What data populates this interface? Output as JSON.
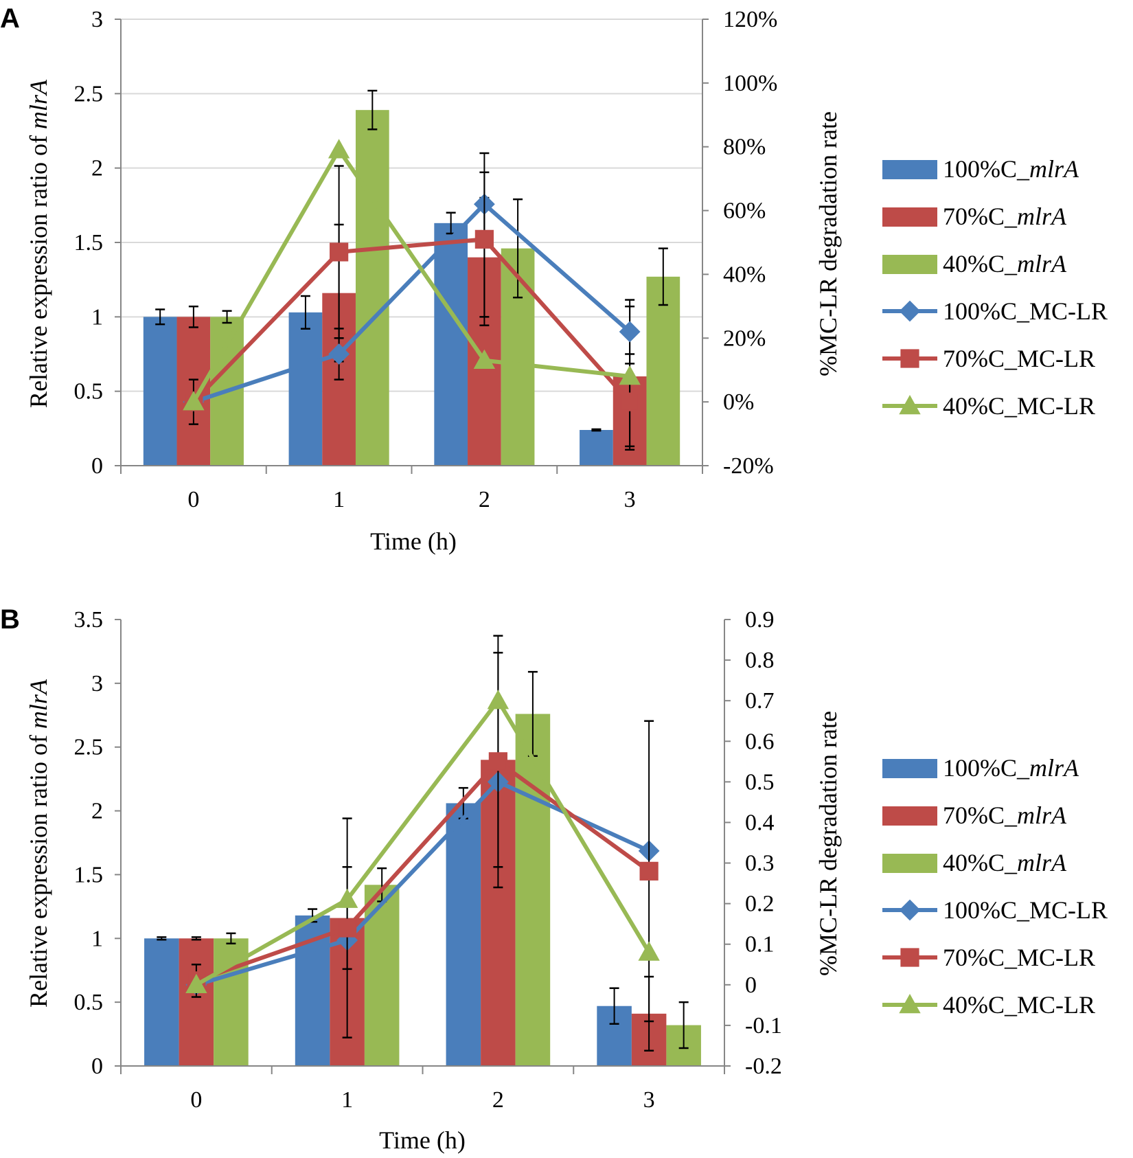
{
  "chart_data": [
    {
      "panel_label": "A",
      "type": "bar+line",
      "categories": [
        "0",
        "1",
        "2",
        "3"
      ],
      "xlabel": "Time (h)",
      "ylabel_prefix": "Relative expression ratio of ",
      "ylabel_italic": "mlrA",
      "y2label": "%MC-LR degradation  rate",
      "y_ticks": [
        "0",
        "0.5",
        "1",
        "1.5",
        "2",
        "2.5",
        "3"
      ],
      "ylim": [
        0,
        3
      ],
      "y2_ticks": [
        "-20%",
        "0%",
        "20%",
        "40%",
        "60%",
        "80%",
        "100%",
        "120%"
      ],
      "y2lim": [
        -20,
        120
      ],
      "gridlines": true,
      "legend_position": "right",
      "bar_series": [
        {
          "name_prefix": "100%C_",
          "name_italic": "mlrA",
          "color": "#4a7ebb",
          "values": [
            1.0,
            1.03,
            1.63,
            0.24
          ],
          "errors": [
            0.05,
            0.11,
            0.07,
            0.005
          ]
        },
        {
          "name_prefix": "70%C_",
          "name_italic": "mlrA",
          "color": "#be4b48",
          "values": [
            1.0,
            1.16,
            1.4,
            0.6
          ],
          "errors": [
            0.07,
            0.46,
            0.4,
            0.47
          ]
        },
        {
          "name_prefix": "40%C_",
          "name_italic": "mlrA",
          "color": "#98b954",
          "values": [
            1.0,
            2.39,
            1.46,
            1.27
          ],
          "errors": [
            0.04,
            0.13,
            0.33,
            0.19
          ]
        }
      ],
      "line_series": [
        {
          "name": "100%C_MC-LR",
          "color": "#4a7ebb",
          "marker": "diamond",
          "values": [
            0,
            15,
            62,
            22
          ],
          "errors": [
            0,
            8,
            10,
            10
          ]
        },
        {
          "name": "70%C_MC-LR",
          "color": "#be4b48",
          "marker": "square",
          "values": [
            0,
            47,
            51,
            0
          ],
          "errors": [
            7,
            27,
            27,
            15
          ]
        },
        {
          "name": "40%C_MC-LR",
          "color": "#98b954",
          "marker": "triangle",
          "values": [
            0,
            79,
            13,
            8
          ],
          "errors": [
            0,
            0,
            0,
            0
          ]
        }
      ]
    },
    {
      "panel_label": "B",
      "type": "bar+line",
      "categories": [
        "0",
        "1",
        "2",
        "3"
      ],
      "xlabel": "Time (h)",
      "ylabel_prefix": "Relative expression ratio of ",
      "ylabel_italic": "mlrA",
      "y2label": "%MC-LR degradation  rate",
      "y_ticks": [
        "0",
        "0.5",
        "1",
        "1.5",
        "2",
        "2.5",
        "3",
        "3.5"
      ],
      "ylim": [
        0,
        3.5
      ],
      "y2_ticks": [
        "-0.2",
        "-0.1",
        "0",
        "0.1",
        "0.2",
        "0.3",
        "0.4",
        "0.5",
        "0.6",
        "0.7",
        "0.8",
        "0.9"
      ],
      "y2lim": [
        -0.2,
        0.9
      ],
      "gridlines": false,
      "legend_position": "right",
      "bar_series": [
        {
          "name_prefix": "100%C_",
          "name_italic": "mlrA",
          "color": "#4a7ebb",
          "values": [
            1.0,
            1.18,
            2.06,
            0.47
          ],
          "errors": [
            0.01,
            0.05,
            0.12,
            0.14
          ]
        },
        {
          "name_prefix": "70%C_",
          "name_italic": "mlrA",
          "color": "#be4b48",
          "values": [
            1.0,
            1.16,
            2.4,
            0.41
          ],
          "errors": [
            0.01,
            0.4,
            0.84,
            0.29
          ]
        },
        {
          "name_prefix": "40%C_",
          "name_italic": "mlrA",
          "color": "#98b954",
          "values": [
            1.0,
            1.42,
            2.76,
            0.32
          ],
          "errors": [
            0.04,
            0.13,
            0.33,
            0.18
          ]
        }
      ],
      "line_series": [
        {
          "name": "100%C_MC-LR",
          "color": "#4a7ebb",
          "marker": "diamond",
          "values": [
            0,
            0.11,
            0.5,
            0.33
          ],
          "errors": [
            0,
            0,
            0,
            0
          ]
        },
        {
          "name": "70%C_MC-LR",
          "color": "#be4b48",
          "marker": "square",
          "values": [
            0.01,
            0.14,
            0.55,
            0.28
          ],
          "errors": [
            0.04,
            0.27,
            0.31,
            0.37
          ]
        },
        {
          "name": "40%C_MC-LR",
          "color": "#98b954",
          "marker": "triangle",
          "values": [
            0,
            0.21,
            0.7,
            0.08
          ],
          "errors": [
            0,
            0,
            0,
            0
          ]
        }
      ]
    }
  ]
}
